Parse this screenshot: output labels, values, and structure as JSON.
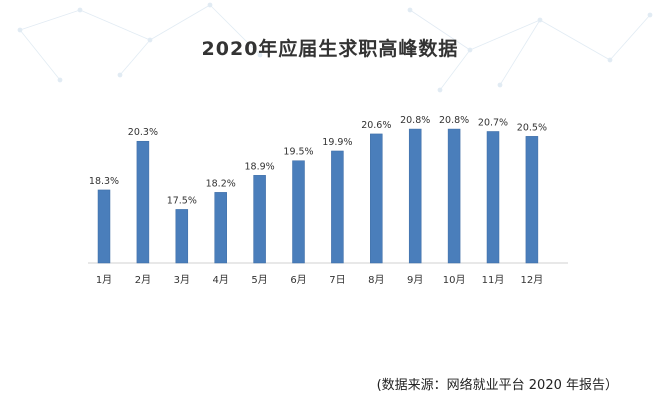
{
  "colors": {
    "bar": "#4A7EBB",
    "bar_edge": "#3A6AA3",
    "axis": "#d0d0d0",
    "text": "#333333",
    "network": "#c9dbea"
  },
  "source_note": "(数据来源：网络就业平台 2020 年报告）",
  "chart_data": {
    "type": "bar",
    "title": "2020年应届生求职高峰数据",
    "xlabel": "",
    "ylabel": "",
    "categories": [
      "1月",
      "2月",
      "3月",
      "4月",
      "5月",
      "6月",
      "7日",
      "8月",
      "9月",
      "10月",
      "11月",
      "12月"
    ],
    "values": [
      18.3,
      20.3,
      17.5,
      18.2,
      18.9,
      19.5,
      19.9,
      20.6,
      20.8,
      20.8,
      20.7,
      20.5
    ],
    "value_labels": [
      "18.3%",
      "20.3%",
      "17.5%",
      "18.2%",
      "18.9%",
      "19.5%",
      "19.9%",
      "20.6%",
      "20.8%",
      "20.8%",
      "20.7%",
      "20.5%"
    ],
    "ylim": [
      15.3,
      21.5
    ],
    "grid": false,
    "legend": "none"
  }
}
